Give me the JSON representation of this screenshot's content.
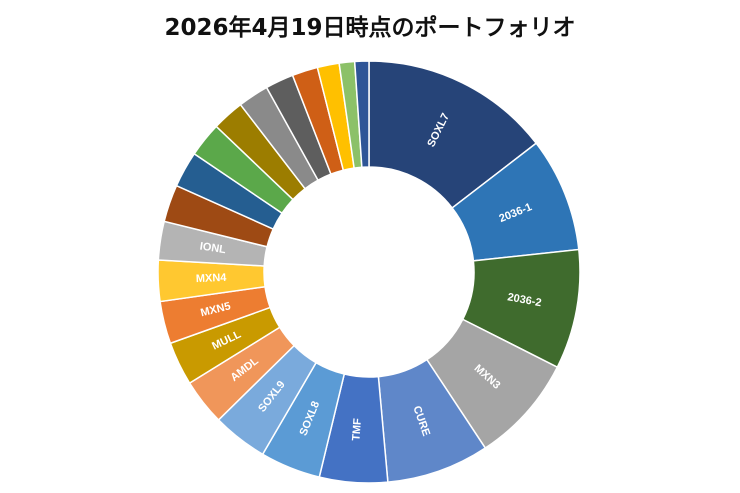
{
  "chart_data": {
    "type": "pie",
    "style": "donut",
    "title": "2026年4月19日時点のポートフォリオ",
    "start_angle_deg": 0,
    "direction": "clockwise",
    "slices": [
      {
        "label": "SOXL7",
        "value": 14.8,
        "color": "#264478"
      },
      {
        "label": "2036-1",
        "value": 8.9,
        "color": "#2E75B6"
      },
      {
        "label": "2036-2",
        "value": 9.3,
        "color": "#3F6B2D"
      },
      {
        "label": "MXN3",
        "value": 8.4,
        "color": "#A5A5A5"
      },
      {
        "label": "CURE",
        "value": 8.0,
        "color": "#5F87C9"
      },
      {
        "label": "TMF",
        "value": 5.3,
        "color": "#4472C4"
      },
      {
        "label": "SOXL8",
        "value": 4.7,
        "color": "#5B9BD5"
      },
      {
        "label": "SOXL9",
        "value": 4.3,
        "color": "#7AAADC"
      },
      {
        "label": "AMDL",
        "value": 3.6,
        "color": "#F0965A"
      },
      {
        "label": "MULL",
        "value": 3.4,
        "color": "#C99A00"
      },
      {
        "label": "MXN5",
        "value": 3.3,
        "color": "#ED7D31"
      },
      {
        "label": "MXN4",
        "value": 3.2,
        "color": "#FFC830"
      },
      {
        "label": "IONL",
        "value": 3.0,
        "color": "#B4B4B4"
      },
      {
        "label": "",
        "value": 2.9,
        "color": "#9E4A14"
      },
      {
        "label": "",
        "value": 2.8,
        "color": "#255E91"
      },
      {
        "label": "",
        "value": 2.7,
        "color": "#5BA84A"
      },
      {
        "label": "",
        "value": 2.5,
        "color": "#9C7D00"
      },
      {
        "label": "",
        "value": 2.4,
        "color": "#8A8A8A"
      },
      {
        "label": "",
        "value": 2.2,
        "color": "#5E5E5E"
      },
      {
        "label": "",
        "value": 2.0,
        "color": "#CF5F16"
      },
      {
        "label": "",
        "value": 1.7,
        "color": "#FFC000"
      },
      {
        "label": "",
        "value": 1.2,
        "color": "#8CC168"
      },
      {
        "label": "",
        "value": 1.1,
        "color": "#2F5597"
      }
    ]
  }
}
